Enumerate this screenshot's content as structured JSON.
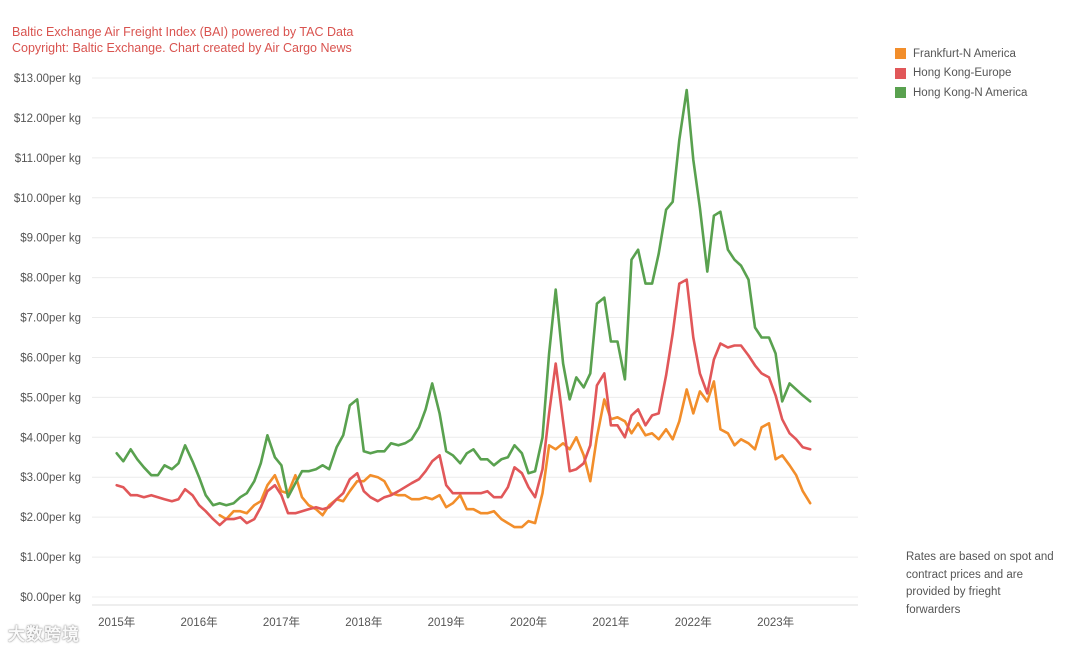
{
  "header": {
    "title": "Baltic Exchange Air Freight Index (BAI) powered by TAC Data",
    "subtitle": "Copyright: Baltic Exchange. Chart created by Air Cargo News"
  },
  "note": "Rates are based on spot and contract prices and are provided by frieght forwarders",
  "watermark": "大数跨境",
  "chart_data": {
    "type": "line",
    "title": "Baltic Exchange Air Freight Index (BAI) powered by TAC Data",
    "subtitle": "Copyright: Baltic Exchange. Chart created by Air Cargo News",
    "xlabel": "",
    "ylabel": "",
    "xlim": [
      2014.7,
      2024.0
    ],
    "ylim": [
      0,
      13
    ],
    "grid": true,
    "legend_position": "top-right",
    "x_ticks": [
      2015,
      2016,
      2017,
      2018,
      2019,
      2020,
      2021,
      2022,
      2023
    ],
    "x_tick_labels": [
      "2015年",
      "2016年",
      "2017年",
      "2018年",
      "2019年",
      "2020年",
      "2021年",
      "2022年",
      "2023年"
    ],
    "y_ticks": [
      0,
      1,
      2,
      3,
      4,
      5,
      6,
      7,
      8,
      9,
      10,
      11,
      12,
      13
    ],
    "y_tick_labels": [
      "$0.00per kg",
      "$1.00per kg",
      "$2.00per kg",
      "$3.00per kg",
      "$4.00per kg",
      "$5.00per kg",
      "$6.00per kg",
      "$7.00per kg",
      "$8.00per kg",
      "$9.00per kg",
      "$10.00per kg",
      "$11.00per kg",
      "$12.00per kg",
      "$13.00per kg"
    ],
    "series": [
      {
        "name": "Frankfurt-N America",
        "color": "#f28e2b",
        "points": [
          [
            2016.25,
            2.05
          ],
          [
            2016.33,
            1.95
          ],
          [
            2016.42,
            2.15
          ],
          [
            2016.5,
            2.15
          ],
          [
            2016.58,
            2.1
          ],
          [
            2016.67,
            2.3
          ],
          [
            2016.75,
            2.4
          ],
          [
            2016.83,
            2.8
          ],
          [
            2016.92,
            3.05
          ],
          [
            2017.0,
            2.65
          ],
          [
            2017.08,
            2.6
          ],
          [
            2017.17,
            3.05
          ],
          [
            2017.25,
            2.5
          ],
          [
            2017.33,
            2.3
          ],
          [
            2017.42,
            2.2
          ],
          [
            2017.5,
            2.05
          ],
          [
            2017.58,
            2.3
          ],
          [
            2017.67,
            2.45
          ],
          [
            2017.75,
            2.4
          ],
          [
            2017.83,
            2.65
          ],
          [
            2017.92,
            2.9
          ],
          [
            2018.0,
            2.9
          ],
          [
            2018.08,
            3.05
          ],
          [
            2018.17,
            3.0
          ],
          [
            2018.25,
            2.9
          ],
          [
            2018.33,
            2.6
          ],
          [
            2018.42,
            2.55
          ],
          [
            2018.5,
            2.55
          ],
          [
            2018.58,
            2.45
          ],
          [
            2018.67,
            2.45
          ],
          [
            2018.75,
            2.5
          ],
          [
            2018.83,
            2.45
          ],
          [
            2018.92,
            2.55
          ],
          [
            2019.0,
            2.25
          ],
          [
            2019.08,
            2.35
          ],
          [
            2019.17,
            2.55
          ],
          [
            2019.25,
            2.2
          ],
          [
            2019.33,
            2.2
          ],
          [
            2019.42,
            2.1
          ],
          [
            2019.5,
            2.1
          ],
          [
            2019.58,
            2.15
          ],
          [
            2019.67,
            1.95
          ],
          [
            2019.75,
            1.85
          ],
          [
            2019.83,
            1.75
          ],
          [
            2019.92,
            1.75
          ],
          [
            2020.0,
            1.9
          ],
          [
            2020.08,
            1.85
          ],
          [
            2020.17,
            2.6
          ],
          [
            2020.25,
            3.8
          ],
          [
            2020.33,
            3.7
          ],
          [
            2020.42,
            3.85
          ],
          [
            2020.5,
            3.7
          ],
          [
            2020.58,
            4.0
          ],
          [
            2020.67,
            3.55
          ],
          [
            2020.75,
            2.9
          ],
          [
            2020.83,
            4.0
          ],
          [
            2020.92,
            4.95
          ],
          [
            2021.0,
            4.45
          ],
          [
            2021.08,
            4.5
          ],
          [
            2021.17,
            4.4
          ],
          [
            2021.25,
            4.1
          ],
          [
            2021.33,
            4.35
          ],
          [
            2021.42,
            4.05
          ],
          [
            2021.5,
            4.1
          ],
          [
            2021.58,
            3.95
          ],
          [
            2021.67,
            4.2
          ],
          [
            2021.75,
            3.95
          ],
          [
            2021.83,
            4.4
          ],
          [
            2021.92,
            5.2
          ],
          [
            2022.0,
            4.6
          ],
          [
            2022.08,
            5.15
          ],
          [
            2022.17,
            4.9
          ],
          [
            2022.25,
            5.4
          ],
          [
            2022.33,
            4.2
          ],
          [
            2022.42,
            4.1
          ],
          [
            2022.5,
            3.8
          ],
          [
            2022.58,
            3.95
          ],
          [
            2022.67,
            3.85
          ],
          [
            2022.75,
            3.7
          ],
          [
            2022.83,
            4.25
          ],
          [
            2022.92,
            4.35
          ],
          [
            2023.0,
            3.45
          ],
          [
            2023.08,
            3.55
          ],
          [
            2023.17,
            3.3
          ],
          [
            2023.25,
            3.05
          ],
          [
            2023.33,
            2.65
          ],
          [
            2023.42,
            2.35
          ]
        ]
      },
      {
        "name": "Hong Kong-Europe",
        "color": "#e15759",
        "points": [
          [
            2015.0,
            2.8
          ],
          [
            2015.08,
            2.75
          ],
          [
            2015.17,
            2.55
          ],
          [
            2015.25,
            2.55
          ],
          [
            2015.33,
            2.5
          ],
          [
            2015.42,
            2.55
          ],
          [
            2015.5,
            2.5
          ],
          [
            2015.58,
            2.45
          ],
          [
            2015.67,
            2.4
          ],
          [
            2015.75,
            2.45
          ],
          [
            2015.83,
            2.7
          ],
          [
            2015.92,
            2.55
          ],
          [
            2016.0,
            2.3
          ],
          [
            2016.08,
            2.15
          ],
          [
            2016.17,
            1.95
          ],
          [
            2016.25,
            1.8
          ],
          [
            2016.33,
            1.95
          ],
          [
            2016.42,
            1.95
          ],
          [
            2016.5,
            2.0
          ],
          [
            2016.58,
            1.85
          ],
          [
            2016.67,
            1.95
          ],
          [
            2016.75,
            2.25
          ],
          [
            2016.83,
            2.65
          ],
          [
            2016.92,
            2.8
          ],
          [
            2017.0,
            2.55
          ],
          [
            2017.08,
            2.1
          ],
          [
            2017.17,
            2.1
          ],
          [
            2017.25,
            2.15
          ],
          [
            2017.33,
            2.2
          ],
          [
            2017.42,
            2.25
          ],
          [
            2017.5,
            2.2
          ],
          [
            2017.58,
            2.25
          ],
          [
            2017.67,
            2.45
          ],
          [
            2017.75,
            2.6
          ],
          [
            2017.83,
            2.95
          ],
          [
            2017.92,
            3.1
          ],
          [
            2018.0,
            2.65
          ],
          [
            2018.08,
            2.5
          ],
          [
            2018.17,
            2.4
          ],
          [
            2018.25,
            2.5
          ],
          [
            2018.33,
            2.55
          ],
          [
            2018.42,
            2.65
          ],
          [
            2018.5,
            2.75
          ],
          [
            2018.58,
            2.85
          ],
          [
            2018.67,
            2.95
          ],
          [
            2018.75,
            3.15
          ],
          [
            2018.83,
            3.4
          ],
          [
            2018.92,
            3.55
          ],
          [
            2019.0,
            2.8
          ],
          [
            2019.08,
            2.6
          ],
          [
            2019.17,
            2.6
          ],
          [
            2019.25,
            2.6
          ],
          [
            2019.33,
            2.6
          ],
          [
            2019.42,
            2.6
          ],
          [
            2019.5,
            2.65
          ],
          [
            2019.58,
            2.5
          ],
          [
            2019.67,
            2.5
          ],
          [
            2019.75,
            2.75
          ],
          [
            2019.83,
            3.25
          ],
          [
            2019.92,
            3.1
          ],
          [
            2020.0,
            2.75
          ],
          [
            2020.08,
            2.5
          ],
          [
            2020.17,
            3.2
          ],
          [
            2020.25,
            4.6
          ],
          [
            2020.33,
            5.85
          ],
          [
            2020.42,
            4.4
          ],
          [
            2020.5,
            3.15
          ],
          [
            2020.58,
            3.2
          ],
          [
            2020.67,
            3.35
          ],
          [
            2020.75,
            3.8
          ],
          [
            2020.83,
            5.3
          ],
          [
            2020.92,
            5.6
          ],
          [
            2021.0,
            4.3
          ],
          [
            2021.08,
            4.3
          ],
          [
            2021.17,
            4.0
          ],
          [
            2021.25,
            4.55
          ],
          [
            2021.33,
            4.7
          ],
          [
            2021.42,
            4.3
          ],
          [
            2021.5,
            4.55
          ],
          [
            2021.58,
            4.6
          ],
          [
            2021.67,
            5.55
          ],
          [
            2021.75,
            6.6
          ],
          [
            2021.83,
            7.85
          ],
          [
            2021.92,
            7.95
          ],
          [
            2022.0,
            6.5
          ],
          [
            2022.08,
            5.6
          ],
          [
            2022.17,
            5.1
          ],
          [
            2022.25,
            5.95
          ],
          [
            2022.33,
            6.35
          ],
          [
            2022.42,
            6.25
          ],
          [
            2022.5,
            6.3
          ],
          [
            2022.58,
            6.3
          ],
          [
            2022.67,
            6.05
          ],
          [
            2022.75,
            5.8
          ],
          [
            2022.83,
            5.6
          ],
          [
            2022.92,
            5.5
          ],
          [
            2023.0,
            5.05
          ],
          [
            2023.08,
            4.45
          ],
          [
            2023.17,
            4.1
          ],
          [
            2023.25,
            3.95
          ],
          [
            2023.33,
            3.75
          ],
          [
            2023.42,
            3.7
          ]
        ]
      },
      {
        "name": "Hong Kong-N America",
        "color": "#59a14f",
        "points": [
          [
            2015.0,
            3.6
          ],
          [
            2015.08,
            3.4
          ],
          [
            2015.17,
            3.7
          ],
          [
            2015.25,
            3.45
          ],
          [
            2015.33,
            3.25
          ],
          [
            2015.42,
            3.05
          ],
          [
            2015.5,
            3.05
          ],
          [
            2015.58,
            3.3
          ],
          [
            2015.67,
            3.2
          ],
          [
            2015.75,
            3.35
          ],
          [
            2015.83,
            3.8
          ],
          [
            2015.92,
            3.4
          ],
          [
            2016.0,
            3.0
          ],
          [
            2016.08,
            2.55
          ],
          [
            2016.17,
            2.3
          ],
          [
            2016.25,
            2.35
          ],
          [
            2016.33,
            2.3
          ],
          [
            2016.42,
            2.35
          ],
          [
            2016.5,
            2.5
          ],
          [
            2016.58,
            2.6
          ],
          [
            2016.67,
            2.9
          ],
          [
            2016.75,
            3.35
          ],
          [
            2016.83,
            4.05
          ],
          [
            2016.92,
            3.5
          ],
          [
            2017.0,
            3.3
          ],
          [
            2017.08,
            2.5
          ],
          [
            2017.17,
            2.85
          ],
          [
            2017.25,
            3.15
          ],
          [
            2017.33,
            3.15
          ],
          [
            2017.42,
            3.2
          ],
          [
            2017.5,
            3.3
          ],
          [
            2017.58,
            3.2
          ],
          [
            2017.67,
            3.75
          ],
          [
            2017.75,
            4.05
          ],
          [
            2017.83,
            4.8
          ],
          [
            2017.92,
            4.95
          ],
          [
            2018.0,
            3.65
          ],
          [
            2018.08,
            3.6
          ],
          [
            2018.17,
            3.65
          ],
          [
            2018.25,
            3.65
          ],
          [
            2018.33,
            3.85
          ],
          [
            2018.42,
            3.8
          ],
          [
            2018.5,
            3.85
          ],
          [
            2018.58,
            3.95
          ],
          [
            2018.67,
            4.25
          ],
          [
            2018.75,
            4.7
          ],
          [
            2018.83,
            5.35
          ],
          [
            2018.92,
            4.6
          ],
          [
            2019.0,
            3.65
          ],
          [
            2019.08,
            3.55
          ],
          [
            2019.17,
            3.35
          ],
          [
            2019.25,
            3.6
          ],
          [
            2019.33,
            3.7
          ],
          [
            2019.42,
            3.45
          ],
          [
            2019.5,
            3.45
          ],
          [
            2019.58,
            3.3
          ],
          [
            2019.67,
            3.45
          ],
          [
            2019.75,
            3.5
          ],
          [
            2019.83,
            3.8
          ],
          [
            2019.92,
            3.6
          ],
          [
            2020.0,
            3.1
          ],
          [
            2020.08,
            3.15
          ],
          [
            2020.17,
            4.0
          ],
          [
            2020.25,
            6.1
          ],
          [
            2020.33,
            7.7
          ],
          [
            2020.42,
            5.85
          ],
          [
            2020.5,
            4.95
          ],
          [
            2020.58,
            5.5
          ],
          [
            2020.67,
            5.25
          ],
          [
            2020.75,
            5.6
          ],
          [
            2020.83,
            7.35
          ],
          [
            2020.92,
            7.5
          ],
          [
            2021.0,
            6.4
          ],
          [
            2021.08,
            6.4
          ],
          [
            2021.17,
            5.45
          ],
          [
            2021.25,
            8.45
          ],
          [
            2021.33,
            8.7
          ],
          [
            2021.42,
            7.85
          ],
          [
            2021.5,
            7.85
          ],
          [
            2021.58,
            8.6
          ],
          [
            2021.67,
            9.7
          ],
          [
            2021.75,
            9.9
          ],
          [
            2021.83,
            11.45
          ],
          [
            2021.92,
            12.7
          ],
          [
            2022.0,
            10.95
          ],
          [
            2022.08,
            9.75
          ],
          [
            2022.17,
            8.15
          ],
          [
            2022.25,
            9.55
          ],
          [
            2022.33,
            9.65
          ],
          [
            2022.42,
            8.7
          ],
          [
            2022.5,
            8.45
          ],
          [
            2022.58,
            8.3
          ],
          [
            2022.67,
            7.95
          ],
          [
            2022.75,
            6.75
          ],
          [
            2022.83,
            6.5
          ],
          [
            2022.92,
            6.5
          ],
          [
            2023.0,
            6.1
          ],
          [
            2023.08,
            4.9
          ],
          [
            2023.17,
            5.35
          ],
          [
            2023.25,
            5.2
          ],
          [
            2023.33,
            5.05
          ],
          [
            2023.42,
            4.9
          ]
        ]
      }
    ]
  }
}
